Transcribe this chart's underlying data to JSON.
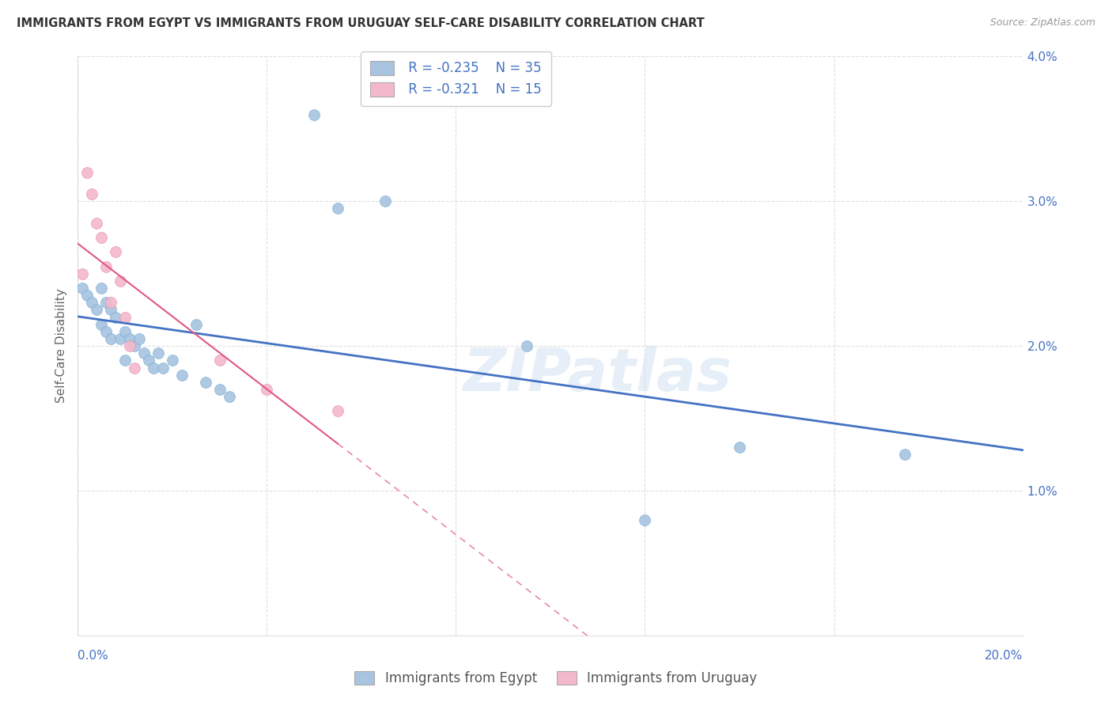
{
  "title": "IMMIGRANTS FROM EGYPT VS IMMIGRANTS FROM URUGUAY SELF-CARE DISABILITY CORRELATION CHART",
  "source": "Source: ZipAtlas.com",
  "ylabel": "Self-Care Disability",
  "xlim": [
    0.0,
    0.2
  ],
  "ylim": [
    0.0,
    0.04
  ],
  "xticks": [
    0.0,
    0.04,
    0.08,
    0.12,
    0.16,
    0.2
  ],
  "yticks": [
    0.0,
    0.01,
    0.02,
    0.03,
    0.04
  ],
  "egypt_color": "#a8c4e0",
  "egypt_edge_color": "#7aadd4",
  "egypt_line_color": "#4472c4",
  "uruguay_color": "#f4b8cc",
  "uruguay_edge_color": "#e890aa",
  "uruguay_line_color": "#e05880",
  "legend_R_egypt": "R = -0.235",
  "legend_N_egypt": "N = 35",
  "legend_R_uruguay": "R = -0.321",
  "legend_N_uruguay": "N = 15",
  "egypt_x": [
    0.001,
    0.002,
    0.003,
    0.004,
    0.005,
    0.005,
    0.006,
    0.006,
    0.007,
    0.007,
    0.008,
    0.009,
    0.01,
    0.01,
    0.011,
    0.012,
    0.013,
    0.014,
    0.015,
    0.016,
    0.017,
    0.018,
    0.02,
    0.022,
    0.025,
    0.027,
    0.03,
    0.032,
    0.05,
    0.055,
    0.065,
    0.095,
    0.12,
    0.14,
    0.175
  ],
  "egypt_y": [
    0.024,
    0.0235,
    0.023,
    0.0225,
    0.024,
    0.0215,
    0.023,
    0.021,
    0.0225,
    0.0205,
    0.022,
    0.0205,
    0.021,
    0.019,
    0.0205,
    0.02,
    0.0205,
    0.0195,
    0.019,
    0.0185,
    0.0195,
    0.0185,
    0.019,
    0.018,
    0.0215,
    0.0175,
    0.017,
    0.0165,
    0.036,
    0.0295,
    0.03,
    0.02,
    0.008,
    0.013,
    0.0125
  ],
  "uruguay_x": [
    0.001,
    0.002,
    0.003,
    0.004,
    0.005,
    0.006,
    0.007,
    0.008,
    0.009,
    0.01,
    0.011,
    0.012,
    0.03,
    0.04,
    0.055
  ],
  "uruguay_y": [
    0.025,
    0.032,
    0.0305,
    0.0285,
    0.0275,
    0.0255,
    0.023,
    0.0265,
    0.0245,
    0.022,
    0.02,
    0.0185,
    0.019,
    0.017,
    0.0155
  ],
  "watermark": "ZIPatlas",
  "background_color": "#ffffff",
  "grid_color": "#d8d8d8"
}
